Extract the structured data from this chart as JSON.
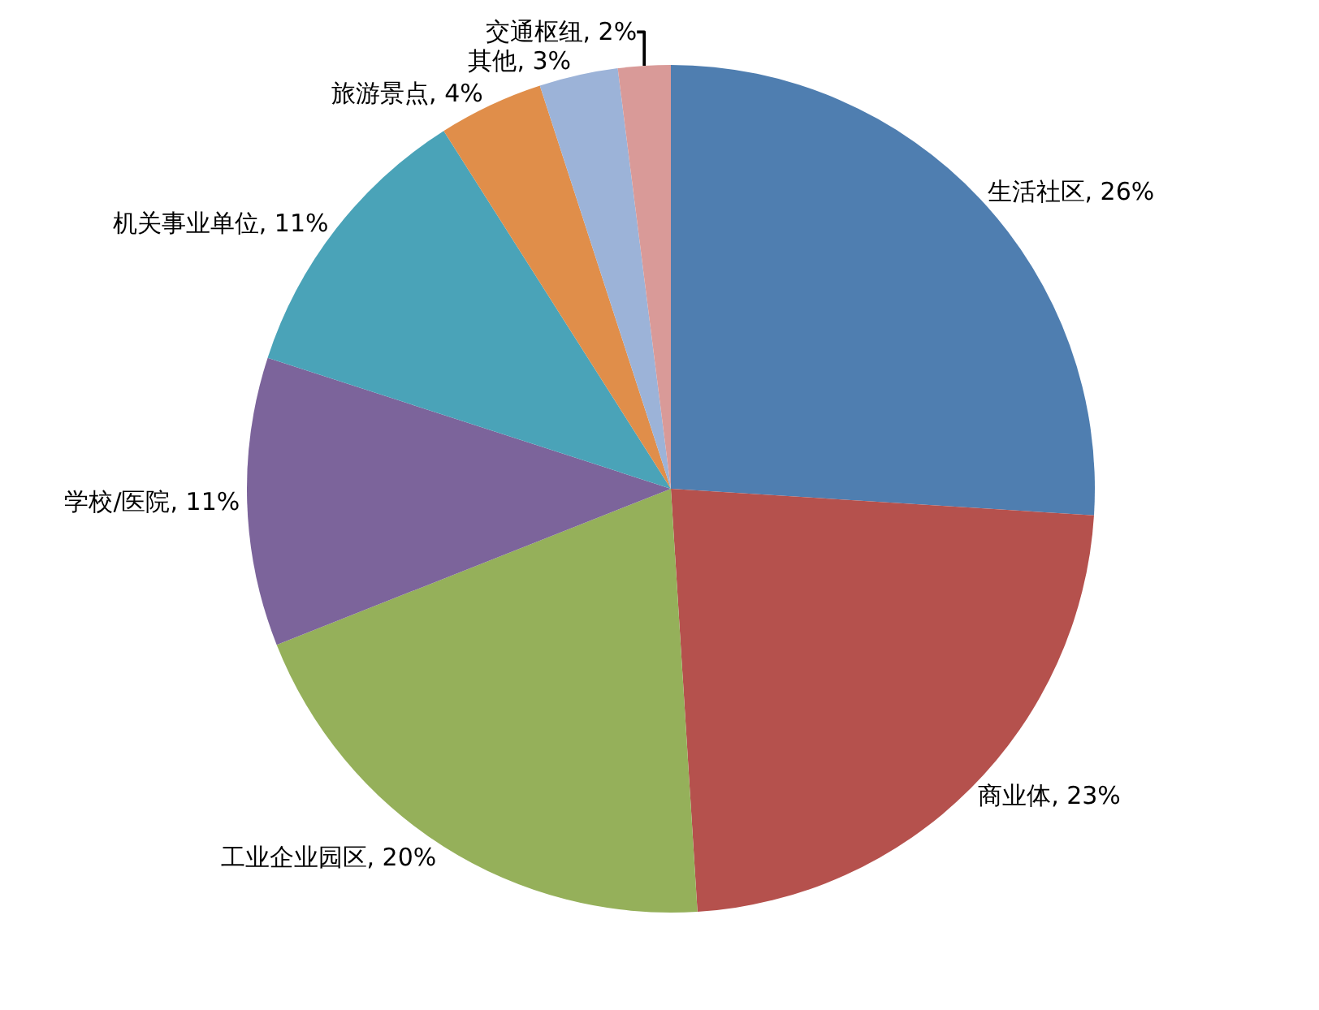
{
  "chart_data": {
    "type": "pie",
    "categories": [
      "生活社区",
      "商业体",
      "工业企业园区",
      "学校/医院",
      "机关事业单位",
      "旅游景点",
      "其他",
      "交通枢纽"
    ],
    "values": [
      26,
      23,
      20,
      11,
      11,
      4,
      3,
      2
    ],
    "value_labels": [
      "26%",
      "23%",
      "20%",
      "11%",
      "11%",
      "4%",
      "3%",
      "2%"
    ],
    "colors": [
      "#4f7eb0",
      "#b5514d",
      "#95b05a",
      "#7c649b",
      "#4aa3b8",
      "#e08e4a",
      "#9cb3d8",
      "#d99a98"
    ],
    "legend": false
  }
}
